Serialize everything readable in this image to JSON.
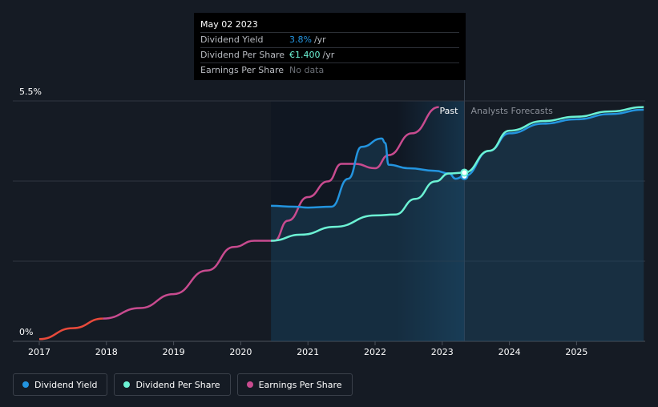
{
  "tooltip": {
    "date": "May 02 2023",
    "rows": [
      {
        "name": "Dividend Yield",
        "value": "3.8%",
        "unit": "/yr"
      },
      {
        "name": "Dividend Per Share",
        "value": "€1.400",
        "unit": "/yr"
      },
      {
        "name": "Earnings Per Share",
        "value": "No data",
        "unit": ""
      }
    ]
  },
  "legend": [
    {
      "name": "Dividend Yield",
      "color": "#2394df"
    },
    {
      "name": "Dividend Per Share",
      "color": "#6cf2d4"
    },
    {
      "name": "Earnings Per Share",
      "color": "#c84b8f"
    }
  ],
  "chart_data": {
    "type": "line",
    "y_labels": {
      "top": "5.5%",
      "bottom": "0%"
    },
    "ylim": [
      0,
      5.5
    ],
    "xlim": [
      2016.95,
      2026.0
    ],
    "x_ticks": [
      "2017",
      "2018",
      "2019",
      "2020",
      "2021",
      "2022",
      "2023",
      "2024",
      "2025"
    ],
    "region_labels": {
      "past": "Past",
      "forecast": "Analysts Forecasts"
    },
    "forecast_start": 2023.33,
    "grid": true,
    "series": [
      {
        "name": "Earnings Per Share",
        "color": "#c84b8f",
        "early_color": "#e84a3b",
        "early_until": 2017.95,
        "points": [
          [
            2017.0,
            0.05
          ],
          [
            2017.5,
            0.3
          ],
          [
            2017.95,
            0.52
          ],
          [
            2018.5,
            0.76
          ],
          [
            2019.0,
            1.08
          ],
          [
            2019.5,
            1.62
          ],
          [
            2019.9,
            2.16
          ],
          [
            2020.2,
            2.3
          ],
          [
            2020.5,
            2.3
          ],
          [
            2020.7,
            2.76
          ],
          [
            2021.0,
            3.3
          ],
          [
            2021.3,
            3.66
          ],
          [
            2021.5,
            4.06
          ],
          [
            2021.7,
            4.06
          ],
          [
            2022.0,
            3.96
          ],
          [
            2022.2,
            4.26
          ],
          [
            2022.55,
            4.76
          ],
          [
            2022.95,
            5.36
          ]
        ]
      },
      {
        "name": "Dividend Yield",
        "color": "#2394df",
        "points": [
          [
            2020.45,
            3.1
          ],
          [
            2020.8,
            3.08
          ],
          [
            2021.0,
            3.06
          ],
          [
            2021.35,
            3.08
          ],
          [
            2021.6,
            3.72
          ],
          [
            2021.8,
            4.45
          ],
          [
            2022.1,
            4.64
          ],
          [
            2022.15,
            4.54
          ],
          [
            2022.2,
            4.04
          ],
          [
            2022.5,
            3.96
          ],
          [
            2022.9,
            3.9
          ],
          [
            2023.1,
            3.84
          ],
          [
            2023.2,
            3.72
          ],
          [
            2023.33,
            3.78
          ],
          [
            2023.7,
            4.36
          ],
          [
            2024.0,
            4.76
          ],
          [
            2024.5,
            4.98
          ],
          [
            2025.0,
            5.08
          ],
          [
            2025.5,
            5.2
          ],
          [
            2026.0,
            5.3
          ]
        ]
      },
      {
        "name": "Dividend Per Share",
        "color": "#6cf2d4",
        "points": [
          [
            2020.45,
            2.3
          ],
          [
            2020.9,
            2.44
          ],
          [
            2021.4,
            2.62
          ],
          [
            2022.0,
            2.88
          ],
          [
            2022.3,
            2.9
          ],
          [
            2022.6,
            3.26
          ],
          [
            2022.9,
            3.66
          ],
          [
            2023.1,
            3.84
          ],
          [
            2023.33,
            3.86
          ],
          [
            2023.7,
            4.36
          ],
          [
            2024.0,
            4.82
          ],
          [
            2024.5,
            5.04
          ],
          [
            2025.0,
            5.14
          ],
          [
            2025.5,
            5.26
          ],
          [
            2026.0,
            5.36
          ]
        ]
      }
    ]
  }
}
